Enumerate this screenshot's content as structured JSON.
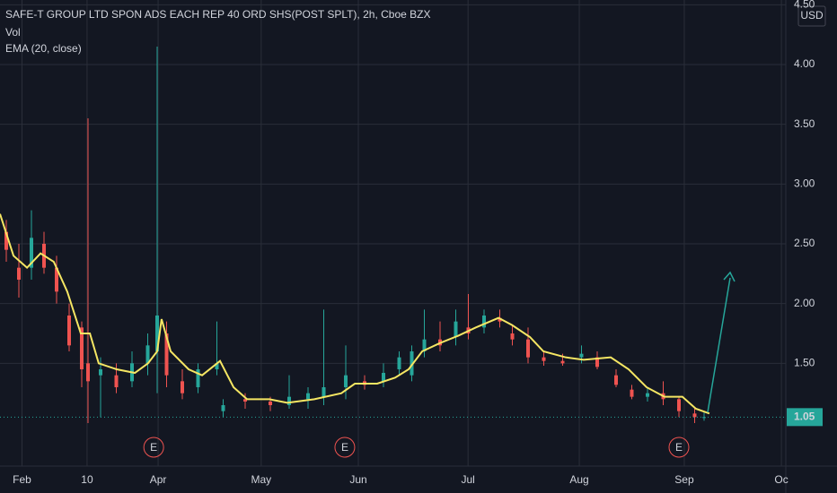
{
  "chart_data": {
    "type": "candlestick",
    "title": "SAFE-T GROUP LTD SPON ADS EACH REP 40 ORD SHS(POST SPLT), 2h, Cboe BZX",
    "volume_label": "Vol",
    "currency": "USD",
    "up_color": "#26a69a",
    "down_color": "#ef5350",
    "grid": true,
    "xlim": [
      0,
      250
    ],
    "xticks": [
      {
        "value": 7,
        "label": "Feb"
      },
      {
        "value": 27.7,
        "label": "10"
      },
      {
        "value": 50.3,
        "label": "Apr"
      },
      {
        "value": 83.1,
        "label": "May"
      },
      {
        "value": 114,
        "label": "Jun"
      },
      {
        "value": 148.9,
        "label": "Jul"
      },
      {
        "value": 184.3,
        "label": "Aug"
      },
      {
        "value": 217.7,
        "label": "Sep"
      },
      {
        "value": 248.6,
        "label": "Oc"
      }
    ],
    "ylim": [
      0.64,
      4.54
    ],
    "yticks": [
      {
        "value": 1.5,
        "label": "1.50"
      },
      {
        "value": 2,
        "label": "2.00"
      },
      {
        "value": 2.5,
        "label": "2.50"
      },
      {
        "value": 3,
        "label": "3.00"
      },
      {
        "value": 3.5,
        "label": "3.50"
      },
      {
        "value": 4,
        "label": "4.00"
      },
      {
        "value": 4.5,
        "label": "4.50"
      }
    ],
    "x": [
      2,
      6,
      10,
      14,
      18,
      22,
      26,
      28,
      32,
      37,
      42,
      47,
      50,
      53,
      58,
      63,
      69,
      71,
      78,
      86,
      92,
      98,
      103,
      110,
      116,
      122,
      127,
      131,
      135,
      140,
      145,
      149,
      154,
      159,
      163,
      168,
      173,
      179,
      185,
      190,
      196,
      201,
      206,
      211,
      216,
      221,
      224
    ],
    "open": [
      2.6,
      2.3,
      2.3,
      2.5,
      2.3,
      1.9,
      1.8,
      1.5,
      1.4,
      1.4,
      1.35,
      1.5,
      1.6,
      1.75,
      1.35,
      1.3,
      1.45,
      1.1,
      1.2,
      1.18,
      1.15,
      1.2,
      1.22,
      1.3,
      1.35,
      1.35,
      1.45,
      1.4,
      1.6,
      1.7,
      1.72,
      1.8,
      1.8,
      1.88,
      1.75,
      1.7,
      1.55,
      1.52,
      1.55,
      1.55,
      1.4,
      1.28,
      1.22,
      1.25,
      1.2,
      1.08,
      1.05
    ],
    "high": [
      2.7,
      2.5,
      2.78,
      2.6,
      2.4,
      2.0,
      1.85,
      3.55,
      1.55,
      1.5,
      1.6,
      1.75,
      4.15,
      1.85,
      1.45,
      1.5,
      1.85,
      1.2,
      1.25,
      1.22,
      1.4,
      1.3,
      1.95,
      1.65,
      1.4,
      1.5,
      1.6,
      1.65,
      1.95,
      1.85,
      1.95,
      2.08,
      1.95,
      1.95,
      1.82,
      1.8,
      1.6,
      1.58,
      1.65,
      1.6,
      1.45,
      1.32,
      1.3,
      1.35,
      1.22,
      1.12,
      1.1
    ],
    "low": [
      2.35,
      2.05,
      2.2,
      2.25,
      2.0,
      1.6,
      1.3,
      1.0,
      1.05,
      1.25,
      1.3,
      1.4,
      1.25,
      1.3,
      1.2,
      1.25,
      1.4,
      1.05,
      1.12,
      1.1,
      1.12,
      1.12,
      1.15,
      1.2,
      1.28,
      1.3,
      1.4,
      1.35,
      1.55,
      1.6,
      1.65,
      1.7,
      1.75,
      1.8,
      1.65,
      1.5,
      1.48,
      1.48,
      1.5,
      1.45,
      1.3,
      1.2,
      1.18,
      1.15,
      1.05,
      1.0,
      1.02
    ],
    "close": [
      2.45,
      2.2,
      2.55,
      2.3,
      2.1,
      1.65,
      1.45,
      1.35,
      1.45,
      1.3,
      1.5,
      1.65,
      1.9,
      1.4,
      1.25,
      1.45,
      1.5,
      1.15,
      1.18,
      1.15,
      1.22,
      1.25,
      1.3,
      1.4,
      1.32,
      1.42,
      1.55,
      1.6,
      1.7,
      1.65,
      1.85,
      1.75,
      1.9,
      1.85,
      1.7,
      1.55,
      1.52,
      1.5,
      1.58,
      1.47,
      1.32,
      1.22,
      1.25,
      1.2,
      1.1,
      1.05,
      1.05
    ],
    "ema": {
      "name": "EMA (20, close)",
      "color": "#f5e663",
      "x": [
        0,
        4.3,
        8.6,
        12.9,
        17.1,
        21.4,
        25.7,
        28.6,
        31.4,
        37.1,
        42.9,
        47.1,
        50,
        51.4,
        54.3,
        60,
        64.3,
        70,
        74.3,
        78.6,
        85.7,
        91.4,
        100,
        108.6,
        112.9,
        120,
        125.7,
        130,
        134.3,
        140,
        145.7,
        151.4,
        158.6,
        162.9,
        168.6,
        172.9,
        180,
        185.7,
        194.3,
        200,
        205.7,
        211.4,
        217.1,
        221.4,
        225.7
      ],
      "values": [
        2.75,
        2.4,
        2.3,
        2.42,
        2.35,
        2.1,
        1.75,
        1.75,
        1.5,
        1.45,
        1.42,
        1.5,
        1.6,
        1.87,
        1.6,
        1.45,
        1.4,
        1.52,
        1.3,
        1.2,
        1.2,
        1.17,
        1.2,
        1.25,
        1.33,
        1.33,
        1.38,
        1.45,
        1.6,
        1.67,
        1.73,
        1.8,
        1.88,
        1.82,
        1.72,
        1.6,
        1.55,
        1.53,
        1.55,
        1.45,
        1.3,
        1.22,
        1.22,
        1.12,
        1.08
      ]
    },
    "last_price": 1.05,
    "earnings": [
      {
        "x": 48.9,
        "label": "E"
      },
      {
        "x": 109.7,
        "label": "E"
      },
      {
        "x": 216,
        "label": "E"
      }
    ]
  }
}
